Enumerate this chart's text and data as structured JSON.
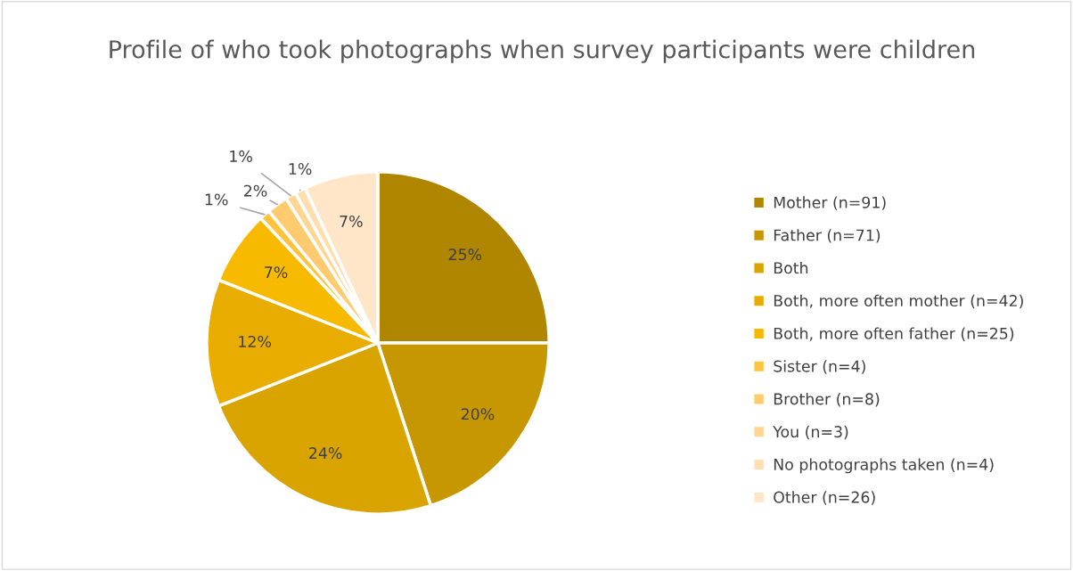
{
  "chart_data": {
    "type": "pie",
    "title": "Profile of who took photographs when survey participants were children",
    "categories": [
      "Mother (n=91)",
      "Father (n=71)",
      "Both",
      "Both, more often mother (n=42)",
      "Both, more often father (n=25)",
      "Sister (n=4)",
      "Brother (n=8)",
      "You (n=3)",
      "No photographs taken (n=4)",
      "Other (n=26)"
    ],
    "values": [
      25,
      20,
      24,
      12,
      7,
      1,
      2,
      1,
      1,
      7
    ],
    "value_labels": [
      "25%",
      "20%",
      "24%",
      "12%",
      "7%",
      "1%",
      "2%",
      "1%",
      "1%",
      "7%"
    ],
    "colors": [
      "#b08500",
      "#c79700",
      "#d9a400",
      "#e8ad00",
      "#f7ba00",
      "#ffc43d",
      "#ffcb6e",
      "#ffd591",
      "#ffdfb0",
      "#ffe6c9"
    ],
    "legend": "right"
  }
}
